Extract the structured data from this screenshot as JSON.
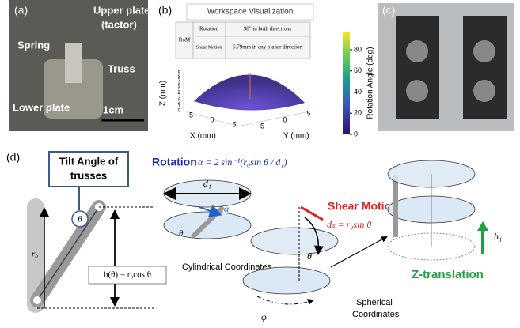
{
  "panels": {
    "a": {
      "label": "(a)",
      "annotations": [
        "Upper plate",
        "(tactor)",
        "Spring",
        "Truss",
        "Lower plate"
      ],
      "scale_bar": "1cm"
    },
    "b": {
      "label": "(b)",
      "title": "Workspace Visualization",
      "table": {
        "group": "RoM",
        "rows": [
          [
            "Rotation",
            "98° in both directions"
          ],
          [
            "Shear Motion",
            "6.79mm in any planar direction"
          ]
        ]
      },
      "x_label": "X (mm)",
      "y_label": "Y (mm)",
      "z_label": "Z (mm)",
      "x_ticks": [
        -5,
        0,
        5
      ],
      "y_ticks": [
        -5,
        0,
        5
      ],
      "z_ticks": [
        0,
        1,
        2,
        3,
        4,
        5,
        6,
        7,
        8,
        9
      ],
      "colorbar_label": "Rotation Angle (deg)",
      "colorbar_ticks": [
        0,
        20,
        40,
        60,
        80
      ]
    },
    "c": {
      "label": "(c)"
    },
    "d": {
      "label": "(d)",
      "tilt_box": [
        "Tilt Angle of",
        "trusses"
      ],
      "theta": "θ",
      "r0": "r₀",
      "height_formula": "h(θ) = r₀cos θ",
      "rotation": {
        "title": "Rotation",
        "formula": "α = 2 sin⁻¹(r₀sin θ / d₁)",
        "d1": "d₁",
        "alpha": "α",
        "theta": "θ",
        "caption": "Cylindrical Coordinates"
      },
      "shear": {
        "title": "Shear Motion",
        "formula": "dₛ = r₀sin θ",
        "theta": "θ",
        "phi": "φ",
        "caption": [
          "Spherical",
          "Coordinates"
        ]
      },
      "ztrans": {
        "title": "Z-translation",
        "h1": "h₁"
      }
    }
  }
}
